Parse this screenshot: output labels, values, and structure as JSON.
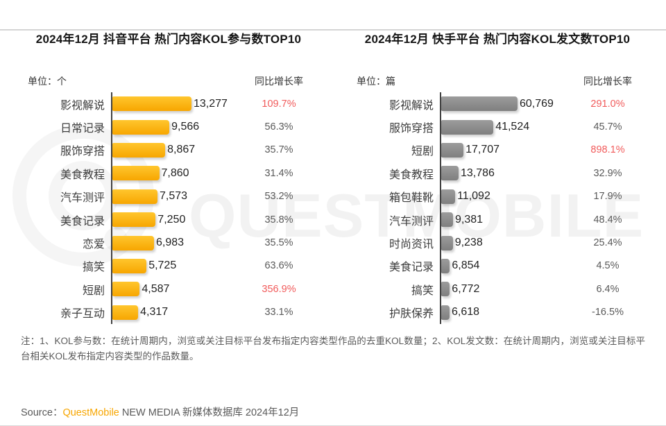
{
  "page": {
    "watermark_text": "QUESTMOBILE",
    "note_line": "注：1、KOL参与数：在统计周期内，浏览或关注目标平台发布指定内容类型作品的去重KOL数量；2、KOL发文数：在统计周期内，浏览或关注目标平台相关KOL发布指定内容类型的作品数量。",
    "source": {
      "prefix": "Source：",
      "brand": "QuestMobile",
      "suffix": " NEW MEDIA 新媒体数据库 2024年12月"
    }
  },
  "colors": {
    "accent_orange": "#F7A600",
    "highlight_red": "#F15B5B",
    "normal_text": "#595959",
    "axis": "#404040"
  },
  "chart_data": [
    {
      "type": "bar",
      "orientation": "horizontal",
      "title": "2024年12月 抖音平台 热门内容KOL参与数TOP10",
      "unit_label": "单位：个",
      "growth_header": "同比增长率",
      "bar_color_top": "#FFC62E",
      "bar_color_bottom": "#F7A600",
      "xlim": [
        0,
        14000
      ],
      "categories": [
        "影视解说",
        "日常记录",
        "服饰穿搭",
        "美食教程",
        "汽车测评",
        "美食记录",
        "恋爱",
        "搞笑",
        "短剧",
        "亲子互动"
      ],
      "values": [
        13277,
        9566,
        8867,
        7860,
        7573,
        7250,
        6983,
        5725,
        4587,
        4317
      ],
      "growth_labels": [
        "109.7%",
        "56.3%",
        "35.7%",
        "31.4%",
        "53.2%",
        "35.8%",
        "35.5%",
        "63.6%",
        "356.9%",
        "33.1%"
      ],
      "growth_highlight": [
        true,
        false,
        false,
        false,
        false,
        false,
        false,
        false,
        true,
        false
      ]
    },
    {
      "type": "bar",
      "orientation": "horizontal",
      "title": "2024年12月 快手平台 热门内容KOL发文数TOP10",
      "unit_label": "单位：篇",
      "growth_header": "同比增长率",
      "bar_color_top": "#9C9C9C",
      "bar_color_bottom": "#7F7F7F",
      "xlim": [
        0,
        62000
      ],
      "categories": [
        "影视解说",
        "服饰穿搭",
        "短剧",
        "美食教程",
        "箱包鞋靴",
        "汽车测评",
        "时尚资讯",
        "美食记录",
        "搞笑",
        "护肤保养"
      ],
      "values": [
        60769,
        41524,
        17707,
        13786,
        11092,
        9381,
        9238,
        6854,
        6772,
        6618
      ],
      "growth_labels": [
        "291.0%",
        "45.7%",
        "898.1%",
        "32.9%",
        "17.9%",
        "48.4%",
        "25.4%",
        "4.5%",
        "6.4%",
        "-16.5%"
      ],
      "growth_highlight": [
        true,
        false,
        true,
        false,
        false,
        false,
        false,
        false,
        false,
        false
      ]
    }
  ]
}
